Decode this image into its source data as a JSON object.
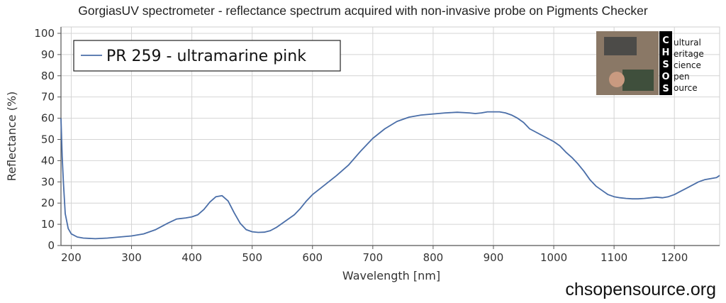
{
  "chart_data": {
    "type": "line",
    "title": "GorgiasUV spectrometer - reflectance spectrum acquired with non-invasive probe on Pigments Checker",
    "xlabel": "Wavelength [nm]",
    "ylabel": "Reflectance (%)",
    "xlim": [
      183,
      1275
    ],
    "ylim": [
      0,
      103
    ],
    "xticks": [
      200,
      300,
      400,
      500,
      600,
      700,
      800,
      900,
      1000,
      1100,
      1200
    ],
    "yticks": [
      0,
      10,
      20,
      30,
      40,
      50,
      60,
      70,
      80,
      90,
      100
    ],
    "grid": true,
    "legend_position": "top-left",
    "series": [
      {
        "name": "PR 259 - ultramarine pink",
        "color": "#4a6ea8",
        "x": [
          183,
          185,
          187,
          190,
          195,
          200,
          210,
          220,
          240,
          260,
          280,
          300,
          320,
          340,
          360,
          375,
          390,
          400,
          410,
          420,
          430,
          440,
          450,
          460,
          470,
          480,
          490,
          500,
          510,
          520,
          530,
          540,
          550,
          560,
          570,
          580,
          590,
          600,
          620,
          640,
          660,
          680,
          700,
          720,
          740,
          760,
          780,
          800,
          820,
          840,
          860,
          870,
          880,
          890,
          900,
          910,
          920,
          930,
          940,
          950,
          960,
          970,
          980,
          990,
          1000,
          1010,
          1020,
          1030,
          1040,
          1050,
          1060,
          1070,
          1080,
          1090,
          1100,
          1110,
          1120,
          1130,
          1140,
          1150,
          1160,
          1170,
          1180,
          1190,
          1200,
          1210,
          1220,
          1230,
          1240,
          1250,
          1260,
          1270,
          1275
        ],
        "y": [
          60,
          42,
          30,
          15,
          8,
          5.5,
          4,
          3.5,
          3.2,
          3.5,
          4,
          4.5,
          5.5,
          7.5,
          10.5,
          12.5,
          13,
          13.5,
          14.5,
          17,
          20.5,
          23,
          23.5,
          21,
          15.5,
          10.5,
          7.5,
          6.5,
          6.2,
          6.3,
          7,
          8.5,
          10.5,
          12.5,
          14.5,
          17.5,
          21,
          24,
          28.5,
          33,
          38,
          44.5,
          50.5,
          55,
          58.5,
          60.5,
          61.5,
          62,
          62.5,
          62.8,
          62.5,
          62.2,
          62.5,
          63,
          63,
          63,
          62.5,
          61.5,
          60,
          58,
          55,
          53.5,
          52,
          50.5,
          49,
          47,
          44,
          41.5,
          38.5,
          35,
          31,
          28,
          26,
          24,
          23,
          22.5,
          22.2,
          22,
          22,
          22.2,
          22.5,
          22.8,
          22.5,
          23,
          24,
          25.5,
          27,
          28.5,
          30,
          31,
          31.5,
          32,
          33
        ]
      }
    ]
  },
  "logo": {
    "letters": [
      "C",
      "H",
      "S",
      "O",
      "S"
    ],
    "words": [
      "ultural",
      "eritage",
      "cience",
      "pen",
      "ource"
    ]
  },
  "footer": {
    "site": "chsopensource.org"
  }
}
